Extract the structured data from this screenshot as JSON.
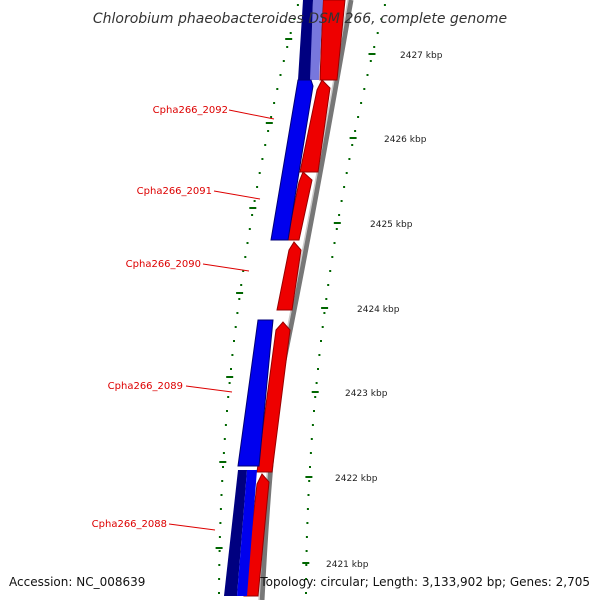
{
  "title": "Chlorobium phaeobacteroides DSM 266, complete genome",
  "footer": {
    "accession": "Accession: NC_008639",
    "summary": "Topology: circular; Length: 3,133,902 bp; Genes: 2,705"
  },
  "scale_labels": [
    "2427 kbp",
    "2426 kbp",
    "2425 kbp",
    "2424 kbp",
    "2423 kbp",
    "2422 kbp",
    "2421 kbp"
  ],
  "gene_labels": [
    "Cpha266_2092",
    "Cpha266_2091",
    "Cpha266_2090",
    "Cpha266_2089",
    "Cpha266_2088"
  ],
  "colors": {
    "forward_strand": "#ee0000",
    "reverse_strand": "#0000ee",
    "reverse_dark": "#000080",
    "backbone": "#888888",
    "ticks": "#006600",
    "label": "#dd0000"
  }
}
